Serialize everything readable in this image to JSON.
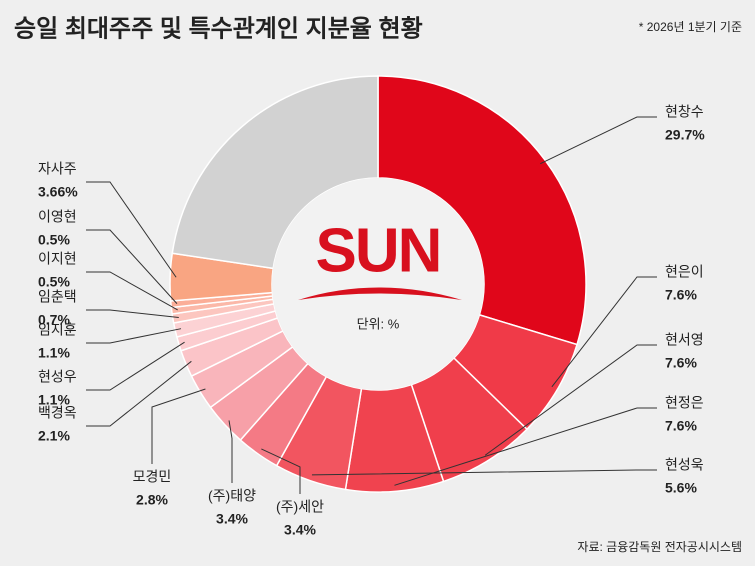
{
  "chart_data": {
    "type": "donut",
    "title": "승일 최대주주 및 특수관계인 지분율 현황",
    "note": "* 2026년 1분기 기준",
    "source": "자료: 금융감독원 전자공시시스템",
    "logo_text": "SUN",
    "unit_note": "단위: %",
    "categories": [
      "현창수",
      "현은이",
      "현서영",
      "현정은",
      "현성욱",
      "(주)세안",
      "(주)태양",
      "모경민",
      "백경옥",
      "현성우",
      "임지훈",
      "임춘택",
      "이지현",
      "이영현",
      "자사주",
      null
    ],
    "values": [
      29.7,
      7.6,
      7.6,
      7.6,
      5.6,
      3.4,
      3.4,
      2.8,
      2.1,
      1.1,
      1.1,
      0.7,
      0.5,
      0.5,
      3.66,
      22.64
    ],
    "value_labels": [
      "29.7%",
      "7.6%",
      "7.6%",
      "7.6%",
      "5.6%",
      "3.4%",
      "3.4%",
      "2.8%",
      "2.1%",
      "1.1%",
      "1.1%",
      "0.7%",
      "0.5%",
      "0.5%",
      "3.66%",
      null
    ],
    "colors": [
      "#e0061a",
      "#f03a48",
      "#f03f4c",
      "#f0434f",
      "#f25560",
      "#f47a85",
      "#f7a0a8",
      "#f9b5bb",
      "#fbc4c8",
      "#fccdd0",
      "#fcd2d4",
      "#fcc6bf",
      "#fbb8a8",
      "#fbae98",
      "#f9a582",
      "#d2d2d2"
    ]
  }
}
